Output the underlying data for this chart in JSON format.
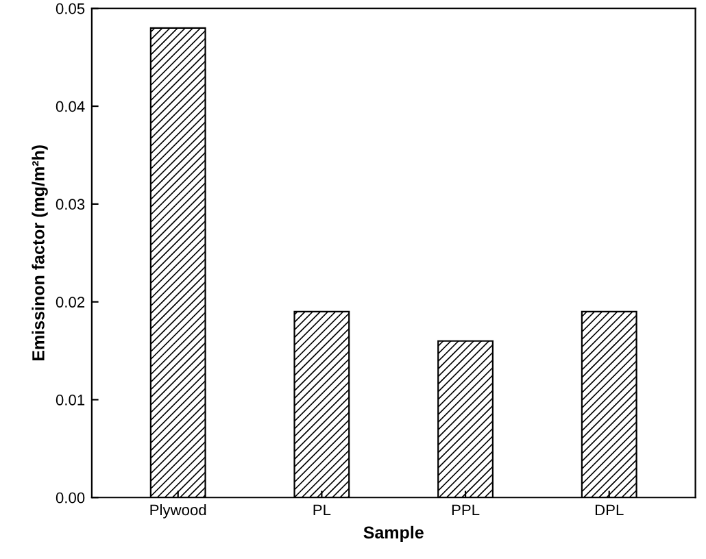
{
  "chart_data": {
    "type": "bar",
    "xlabel": "Sample",
    "ylabel": "Emissinon factor (mg/m²h)",
    "categories": [
      "Plywood",
      "PL",
      "PPL",
      "DPL"
    ],
    "values": [
      0.048,
      0.019,
      0.016,
      0.019
    ],
    "color": "#000000",
    "ylim": [
      0,
      0.05
    ],
    "yticks": [
      {
        "value": 0,
        "label": "0.00"
      },
      0.01,
      0.02,
      0.03,
      0.04,
      0.05
    ],
    "grid": false,
    "legend": false
  }
}
